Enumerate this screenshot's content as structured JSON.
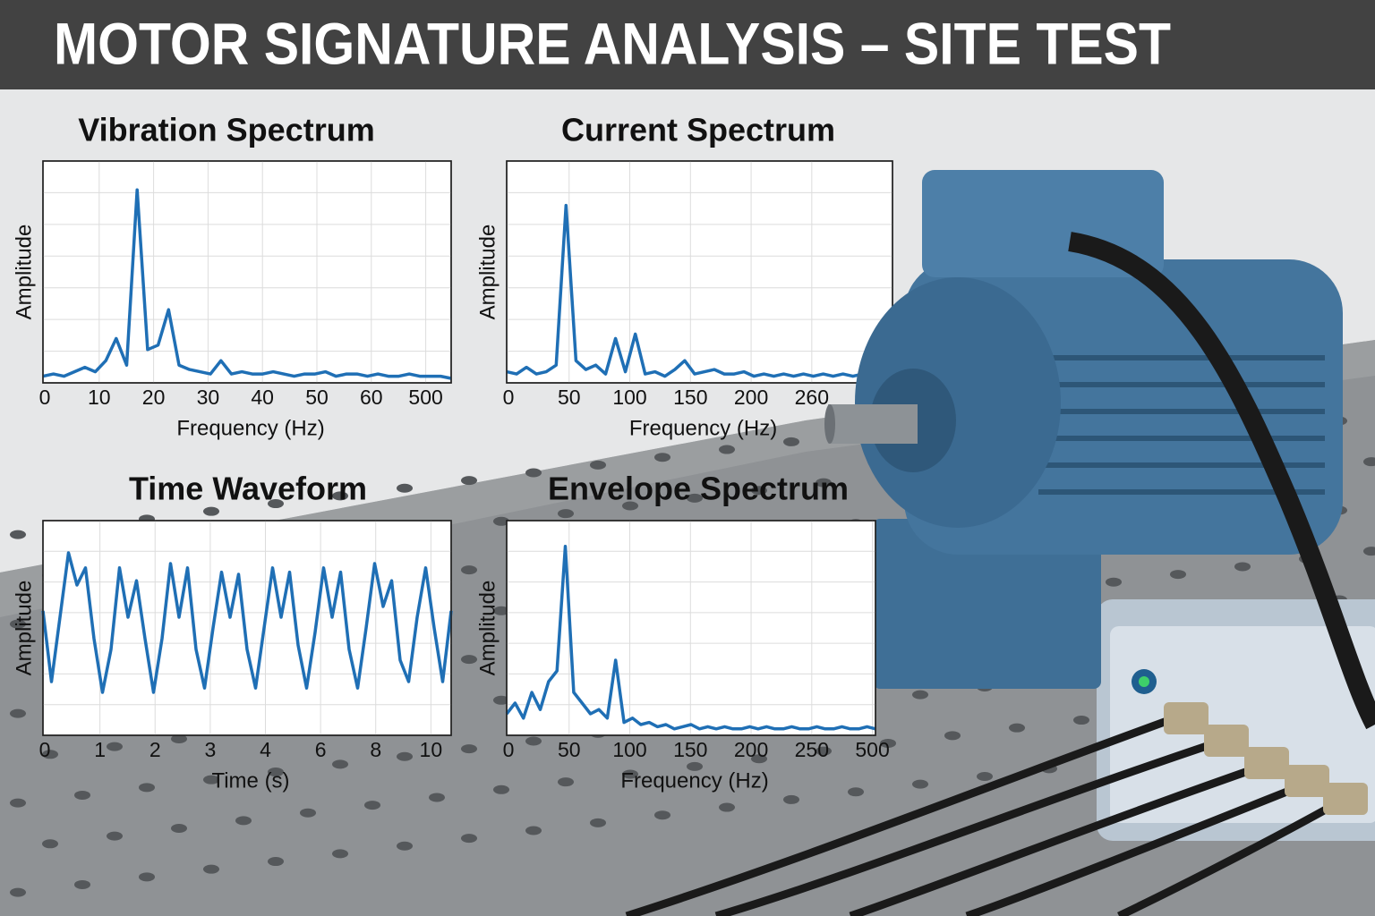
{
  "header": {
    "title": "MOTOR SIGNATURE ANALYSIS – SITE TEST"
  },
  "chart_data": [
    {
      "type": "line",
      "title": "Vibration Spectrum",
      "xlabel": "Frequency (Hz)",
      "ylabel": "Amplitude",
      "color": "#1f6fb5",
      "grid": true,
      "xticks": [
        0,
        10,
        20,
        30,
        40,
        50,
        60,
        500
      ],
      "ylim": [
        0,
        1
      ],
      "values": [
        0.03,
        0.04,
        0.03,
        0.05,
        0.07,
        0.05,
        0.1,
        0.2,
        0.08,
        0.87,
        0.15,
        0.17,
        0.33,
        0.08,
        0.06,
        0.05,
        0.04,
        0.1,
        0.04,
        0.05,
        0.04,
        0.04,
        0.05,
        0.04,
        0.03,
        0.04,
        0.04,
        0.05,
        0.03,
        0.04,
        0.04,
        0.03,
        0.04,
        0.03,
        0.03,
        0.04,
        0.03,
        0.03,
        0.03,
        0.02
      ]
    },
    {
      "type": "line",
      "title": "Current Spectrum",
      "xlabel": "Frequency (Hz)",
      "ylabel": "Amplitude",
      "color": "#1f6fb5",
      "grid": true,
      "xticks": [
        0,
        50,
        100,
        150,
        200,
        260
      ],
      "ylim": [
        0,
        1
      ],
      "values": [
        0.05,
        0.04,
        0.07,
        0.04,
        0.05,
        0.08,
        0.8,
        0.1,
        0.06,
        0.08,
        0.04,
        0.2,
        0.05,
        0.22,
        0.04,
        0.05,
        0.03,
        0.06,
        0.1,
        0.04,
        0.05,
        0.06,
        0.04,
        0.04,
        0.05,
        0.03,
        0.04,
        0.03,
        0.04,
        0.03,
        0.04,
        0.03,
        0.04,
        0.03,
        0.04,
        0.03,
        0.04,
        0.03,
        0.03,
        0.03
      ]
    },
    {
      "type": "line",
      "title": "Time Waveform",
      "xlabel": "Time (s)",
      "ylabel": "Amplitude",
      "color": "#1f6fb5",
      "grid": true,
      "xticks": [
        0,
        1,
        2,
        3,
        4,
        6,
        8,
        10
      ],
      "ylim": [
        0,
        1
      ],
      "values": [
        0.58,
        0.25,
        0.55,
        0.85,
        0.7,
        0.78,
        0.45,
        0.2,
        0.4,
        0.78,
        0.55,
        0.72,
        0.45,
        0.2,
        0.45,
        0.8,
        0.55,
        0.78,
        0.4,
        0.22,
        0.5,
        0.76,
        0.55,
        0.75,
        0.4,
        0.22,
        0.5,
        0.78,
        0.55,
        0.76,
        0.42,
        0.22,
        0.48,
        0.78,
        0.55,
        0.76,
        0.4,
        0.22,
        0.5,
        0.8,
        0.6,
        0.72,
        0.35,
        0.25,
        0.55,
        0.78,
        0.5,
        0.25,
        0.58
      ]
    },
    {
      "type": "line",
      "title": "Envelope Spectrum",
      "xlabel": "Frequency (Hz)",
      "ylabel": "Amplitude",
      "color": "#1f6fb5",
      "grid": true,
      "xticks": [
        0,
        50,
        100,
        150,
        200,
        250,
        500
      ],
      "ylim": [
        0,
        1
      ],
      "values": [
        0.1,
        0.15,
        0.08,
        0.2,
        0.12,
        0.25,
        0.3,
        0.88,
        0.2,
        0.15,
        0.1,
        0.12,
        0.08,
        0.35,
        0.06,
        0.08,
        0.05,
        0.06,
        0.04,
        0.05,
        0.03,
        0.04,
        0.05,
        0.03,
        0.04,
        0.03,
        0.04,
        0.03,
        0.03,
        0.04,
        0.03,
        0.04,
        0.03,
        0.03,
        0.04,
        0.03,
        0.03,
        0.04,
        0.03,
        0.03,
        0.04,
        0.03,
        0.03,
        0.04,
        0.03
      ]
    }
  ]
}
